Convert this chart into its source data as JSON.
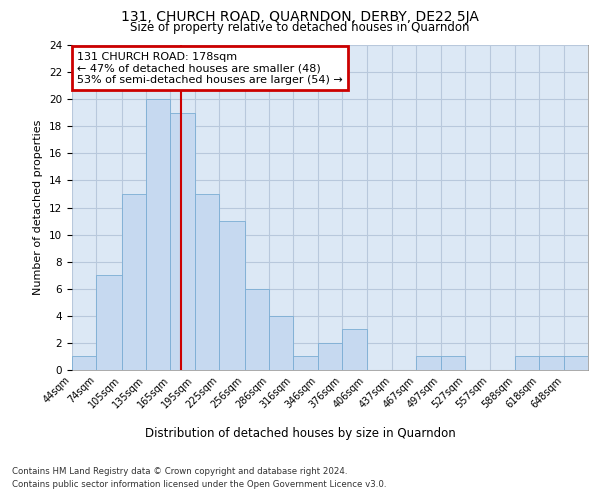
{
  "title": "131, CHURCH ROAD, QUARNDON, DERBY, DE22 5JA",
  "subtitle": "Size of property relative to detached houses in Quarndon",
  "xlabel": "Distribution of detached houses by size in Quarndon",
  "ylabel": "Number of detached properties",
  "bin_labels": [
    "44sqm",
    "74sqm",
    "105sqm",
    "135sqm",
    "165sqm",
    "195sqm",
    "225sqm",
    "256sqm",
    "286sqm",
    "316sqm",
    "346sqm",
    "376sqm",
    "406sqm",
    "437sqm",
    "467sqm",
    "497sqm",
    "527sqm",
    "557sqm",
    "588sqm",
    "618sqm",
    "648sqm"
  ],
  "bin_left_edges": [
    44,
    74,
    105,
    135,
    165,
    195,
    225,
    256,
    286,
    316,
    346,
    376,
    406,
    437,
    467,
    497,
    527,
    557,
    588,
    618,
    648
  ],
  "bin_widths": [
    30,
    31,
    30,
    30,
    30,
    30,
    31,
    30,
    30,
    30,
    30,
    30,
    31,
    30,
    30,
    30,
    30,
    31,
    30,
    30,
    30
  ],
  "heights": [
    1,
    7,
    13,
    20,
    19,
    13,
    11,
    6,
    4,
    1,
    2,
    3,
    0,
    0,
    1,
    1,
    0,
    0,
    1,
    1,
    1
  ],
  "bar_color": "#c6d9f0",
  "bar_edge_color": "#7aadd4",
  "property_size": 178,
  "vline_color": "#cc0000",
  "annotation_text": "131 CHURCH ROAD: 178sqm\n← 47% of detached houses are smaller (48)\n53% of semi-detached houses are larger (54) →",
  "annotation_box_color": "#cc0000",
  "ylim": [
    0,
    24
  ],
  "yticks": [
    0,
    2,
    4,
    6,
    8,
    10,
    12,
    14,
    16,
    18,
    20,
    22,
    24
  ],
  "footer_line1": "Contains HM Land Registry data © Crown copyright and database right 2024.",
  "footer_line2": "Contains public sector information licensed under the Open Government Licence v3.0.",
  "bg_color": "#ffffff",
  "grid_color": "#b8c8dc",
  "plot_bg_color": "#dce8f5"
}
